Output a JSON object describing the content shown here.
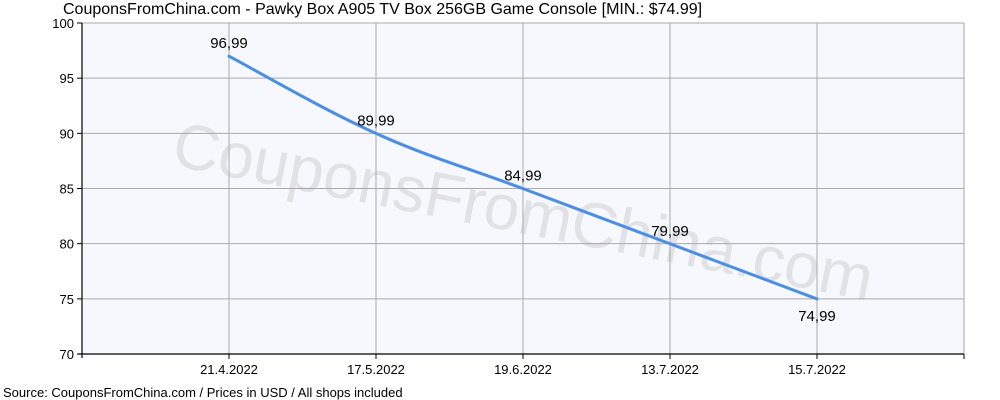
{
  "header": {
    "title": "CouponsFromChina.com - Pawky Box A905 TV  Box 256GB Game Console [MIN.: $74.99]"
  },
  "footer": {
    "source": "Source: CouponsFromChina.com / Prices in USD / All shops included"
  },
  "watermark": "CouponsFromChina.com",
  "colors": {
    "line": "#4a8ee6",
    "plot_background": "#f7f8fd",
    "grid": "#aaaaaa",
    "axis": "#000000"
  },
  "chart_data": {
    "type": "line",
    "title": "CouponsFromChina.com - Pawky Box A905 TV  Box 256GB Game Console [MIN.: $74.99]",
    "xlabel": "",
    "ylabel": "",
    "categories": [
      "21.4.2022",
      "17.5.2022",
      "19.6.2022",
      "13.7.2022",
      "15.7.2022"
    ],
    "series": [
      {
        "name": "Price (USD)",
        "values": [
          96.99,
          89.99,
          84.99,
          79.99,
          74.99
        ]
      }
    ],
    "data_labels": [
      "96,99",
      "89,99",
      "84,99",
      "79,99",
      "74,99"
    ],
    "ylim": [
      70,
      100
    ],
    "yticks": [
      70,
      75,
      80,
      85,
      90,
      95,
      100
    ],
    "grid": true,
    "legend": "none",
    "min_price": "$74.99"
  }
}
